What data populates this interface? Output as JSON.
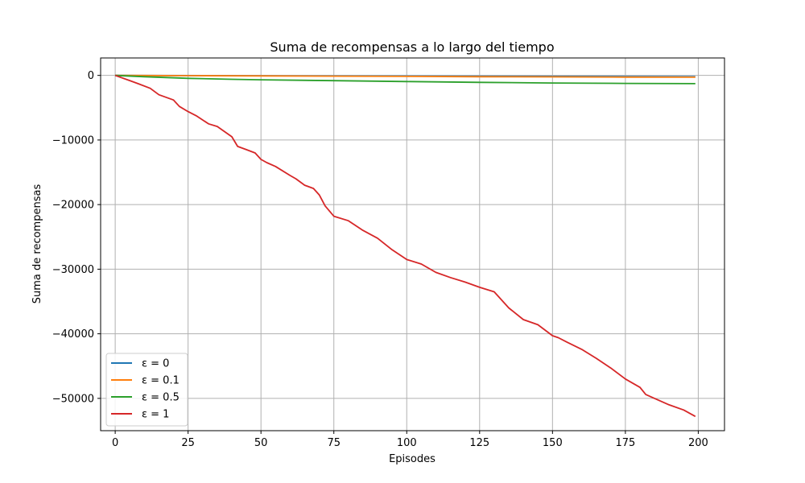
{
  "chart_data": {
    "type": "line",
    "title": "Suma de recompensas a lo largo del tiempo",
    "xlabel": "Episodes",
    "ylabel": "Suma de recompensas",
    "xlim": [
      -5,
      209
    ],
    "ylim": [
      -55000,
      2700
    ],
    "x_ticks": [
      0,
      25,
      50,
      75,
      100,
      125,
      150,
      175,
      200
    ],
    "y_ticks": [
      0,
      -10000,
      -20000,
      -30000,
      -40000,
      -50000
    ],
    "x_tick_labels": [
      "0",
      "25",
      "50",
      "75",
      "100",
      "125",
      "150",
      "175",
      "200"
    ],
    "y_tick_labels": [
      "0",
      "−10000",
      "−20000",
      "−30000",
      "−40000",
      "−50000"
    ],
    "grid": true,
    "legend_position": "lower-left",
    "series": [
      {
        "name": "ε = 0",
        "color": "#1f77b4",
        "x": [
          0,
          199
        ],
        "y": [
          0,
          -200
        ]
      },
      {
        "name": "ε = 0.1",
        "color": "#ff7f0e",
        "x": [
          0,
          25,
          50,
          75,
          100,
          125,
          150,
          175,
          199
        ],
        "y": [
          0,
          -40,
          -80,
          -120,
          -160,
          -200,
          -230,
          -260,
          -280
        ]
      },
      {
        "name": "ε = 0.5",
        "color": "#2ca02c",
        "x": [
          0,
          10,
          25,
          40,
          50,
          75,
          100,
          125,
          150,
          175,
          199
        ],
        "y": [
          0,
          -200,
          -450,
          -600,
          -680,
          -820,
          -950,
          -1080,
          -1170,
          -1240,
          -1280
        ]
      },
      {
        "name": "ε = 1",
        "color": "#d62728",
        "x": [
          0,
          5,
          8,
          12,
          15,
          20,
          22,
          25,
          28,
          32,
          35,
          40,
          42,
          45,
          48,
          50,
          52,
          55,
          60,
          62,
          65,
          68,
          70,
          72,
          75,
          80,
          85,
          90,
          95,
          100,
          105,
          110,
          115,
          120,
          125,
          130,
          135,
          140,
          145,
          150,
          152,
          155,
          160,
          165,
          170,
          175,
          180,
          182,
          185,
          190,
          195,
          199
        ],
        "y": [
          0,
          -800,
          -1300,
          -2000,
          -3000,
          -3800,
          -4800,
          -5600,
          -6300,
          -7500,
          -7900,
          -9500,
          -11000,
          -11500,
          -12000,
          -13000,
          -13500,
          -14100,
          -15500,
          -16000,
          -17000,
          -17500,
          -18500,
          -20200,
          -21800,
          -22500,
          -24000,
          -25200,
          -27000,
          -28500,
          -29200,
          -30500,
          -31300,
          -32000,
          -32800,
          -33500,
          -36000,
          -37800,
          -38600,
          -40300,
          -40600,
          -41300,
          -42400,
          -43800,
          -45300,
          -47000,
          -48300,
          -49400,
          -50000,
          -51000,
          -51800,
          -52800
        ]
      }
    ]
  }
}
